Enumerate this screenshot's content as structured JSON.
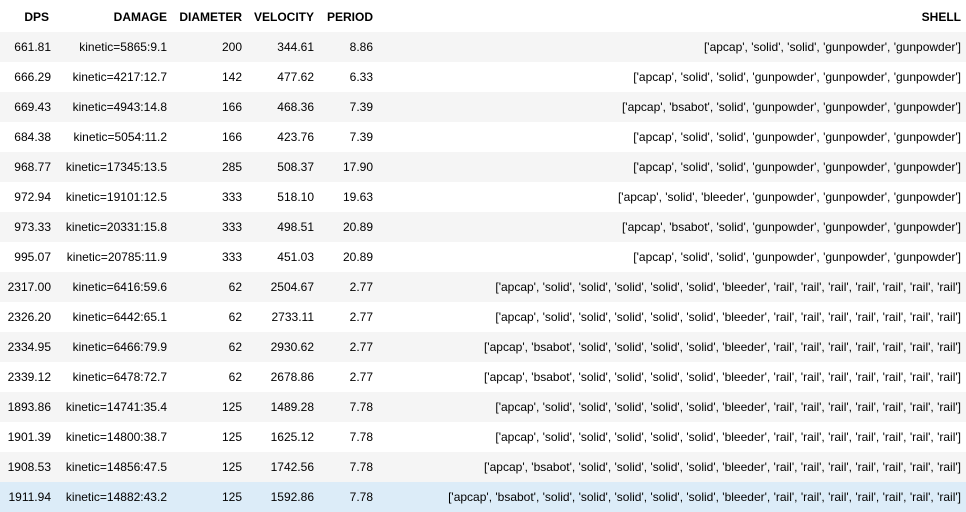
{
  "table": {
    "columns": [
      "DPS",
      "DAMAGE",
      "DIAMETER",
      "VELOCITY",
      "PERIOD",
      "SHELL"
    ],
    "selected_row": 15,
    "rows": [
      [
        "661.81",
        "kinetic=5865:9.1",
        "200",
        "344.61",
        "8.86",
        "['apcap', 'solid', 'solid', 'gunpowder', 'gunpowder']"
      ],
      [
        "666.29",
        "kinetic=4217:12.7",
        "142",
        "477.62",
        "6.33",
        "['apcap', 'solid', 'solid', 'gunpowder', 'gunpowder', 'gunpowder']"
      ],
      [
        "669.43",
        "kinetic=4943:14.8",
        "166",
        "468.36",
        "7.39",
        "['apcap', 'bsabot', 'solid', 'gunpowder', 'gunpowder', 'gunpowder']"
      ],
      [
        "684.38",
        "kinetic=5054:11.2",
        "166",
        "423.76",
        "7.39",
        "['apcap', 'solid', 'solid', 'gunpowder', 'gunpowder', 'gunpowder']"
      ],
      [
        "968.77",
        "kinetic=17345:13.5",
        "285",
        "508.37",
        "17.90",
        "['apcap', 'solid', 'solid', 'gunpowder', 'gunpowder', 'gunpowder']"
      ],
      [
        "972.94",
        "kinetic=19101:12.5",
        "333",
        "518.10",
        "19.63",
        "['apcap', 'solid', 'bleeder', 'gunpowder', 'gunpowder', 'gunpowder']"
      ],
      [
        "973.33",
        "kinetic=20331:15.8",
        "333",
        "498.51",
        "20.89",
        "['apcap', 'bsabot', 'solid', 'gunpowder', 'gunpowder', 'gunpowder']"
      ],
      [
        "995.07",
        "kinetic=20785:11.9",
        "333",
        "451.03",
        "20.89",
        "['apcap', 'solid', 'solid', 'gunpowder', 'gunpowder', 'gunpowder']"
      ],
      [
        "2317.00",
        "kinetic=6416:59.6",
        "62",
        "2504.67",
        "2.77",
        "['apcap', 'solid', 'solid', 'solid', 'solid', 'solid', 'bleeder', 'rail', 'rail', 'rail', 'rail', 'rail', 'rail', 'rail']"
      ],
      [
        "2326.20",
        "kinetic=6442:65.1",
        "62",
        "2733.11",
        "2.77",
        "['apcap', 'solid', 'solid', 'solid', 'solid', 'solid', 'bleeder', 'rail', 'rail', 'rail', 'rail', 'rail', 'rail', 'rail']"
      ],
      [
        "2334.95",
        "kinetic=6466:79.9",
        "62",
        "2930.62",
        "2.77",
        "['apcap', 'bsabot', 'solid', 'solid', 'solid', 'solid', 'bleeder', 'rail', 'rail', 'rail', 'rail', 'rail', 'rail', 'rail']"
      ],
      [
        "2339.12",
        "kinetic=6478:72.7",
        "62",
        "2678.86",
        "2.77",
        "['apcap', 'bsabot', 'solid', 'solid', 'solid', 'solid', 'bleeder', 'rail', 'rail', 'rail', 'rail', 'rail', 'rail', 'rail']"
      ],
      [
        "1893.86",
        "kinetic=14741:35.4",
        "125",
        "1489.28",
        "7.78",
        "['apcap', 'solid', 'solid', 'solid', 'solid', 'solid', 'bleeder', 'rail', 'rail', 'rail', 'rail', 'rail', 'rail', 'rail']"
      ],
      [
        "1901.39",
        "kinetic=14800:38.7",
        "125",
        "1625.12",
        "7.78",
        "['apcap', 'solid', 'solid', 'solid', 'solid', 'solid', 'bleeder', 'rail', 'rail', 'rail', 'rail', 'rail', 'rail', 'rail']"
      ],
      [
        "1908.53",
        "kinetic=14856:47.5",
        "125",
        "1742.56",
        "7.78",
        "['apcap', 'bsabot', 'solid', 'solid', 'solid', 'solid', 'bleeder', 'rail', 'rail', 'rail', 'rail', 'rail', 'rail', 'rail']"
      ],
      [
        "1911.94",
        "kinetic=14882:43.2",
        "125",
        "1592.86",
        "7.78",
        "['apcap', 'bsabot', 'solid', 'solid', 'solid', 'solid', 'solid', 'bleeder', 'rail', 'rail', 'rail', 'rail', 'rail', 'rail', 'rail']"
      ]
    ]
  }
}
